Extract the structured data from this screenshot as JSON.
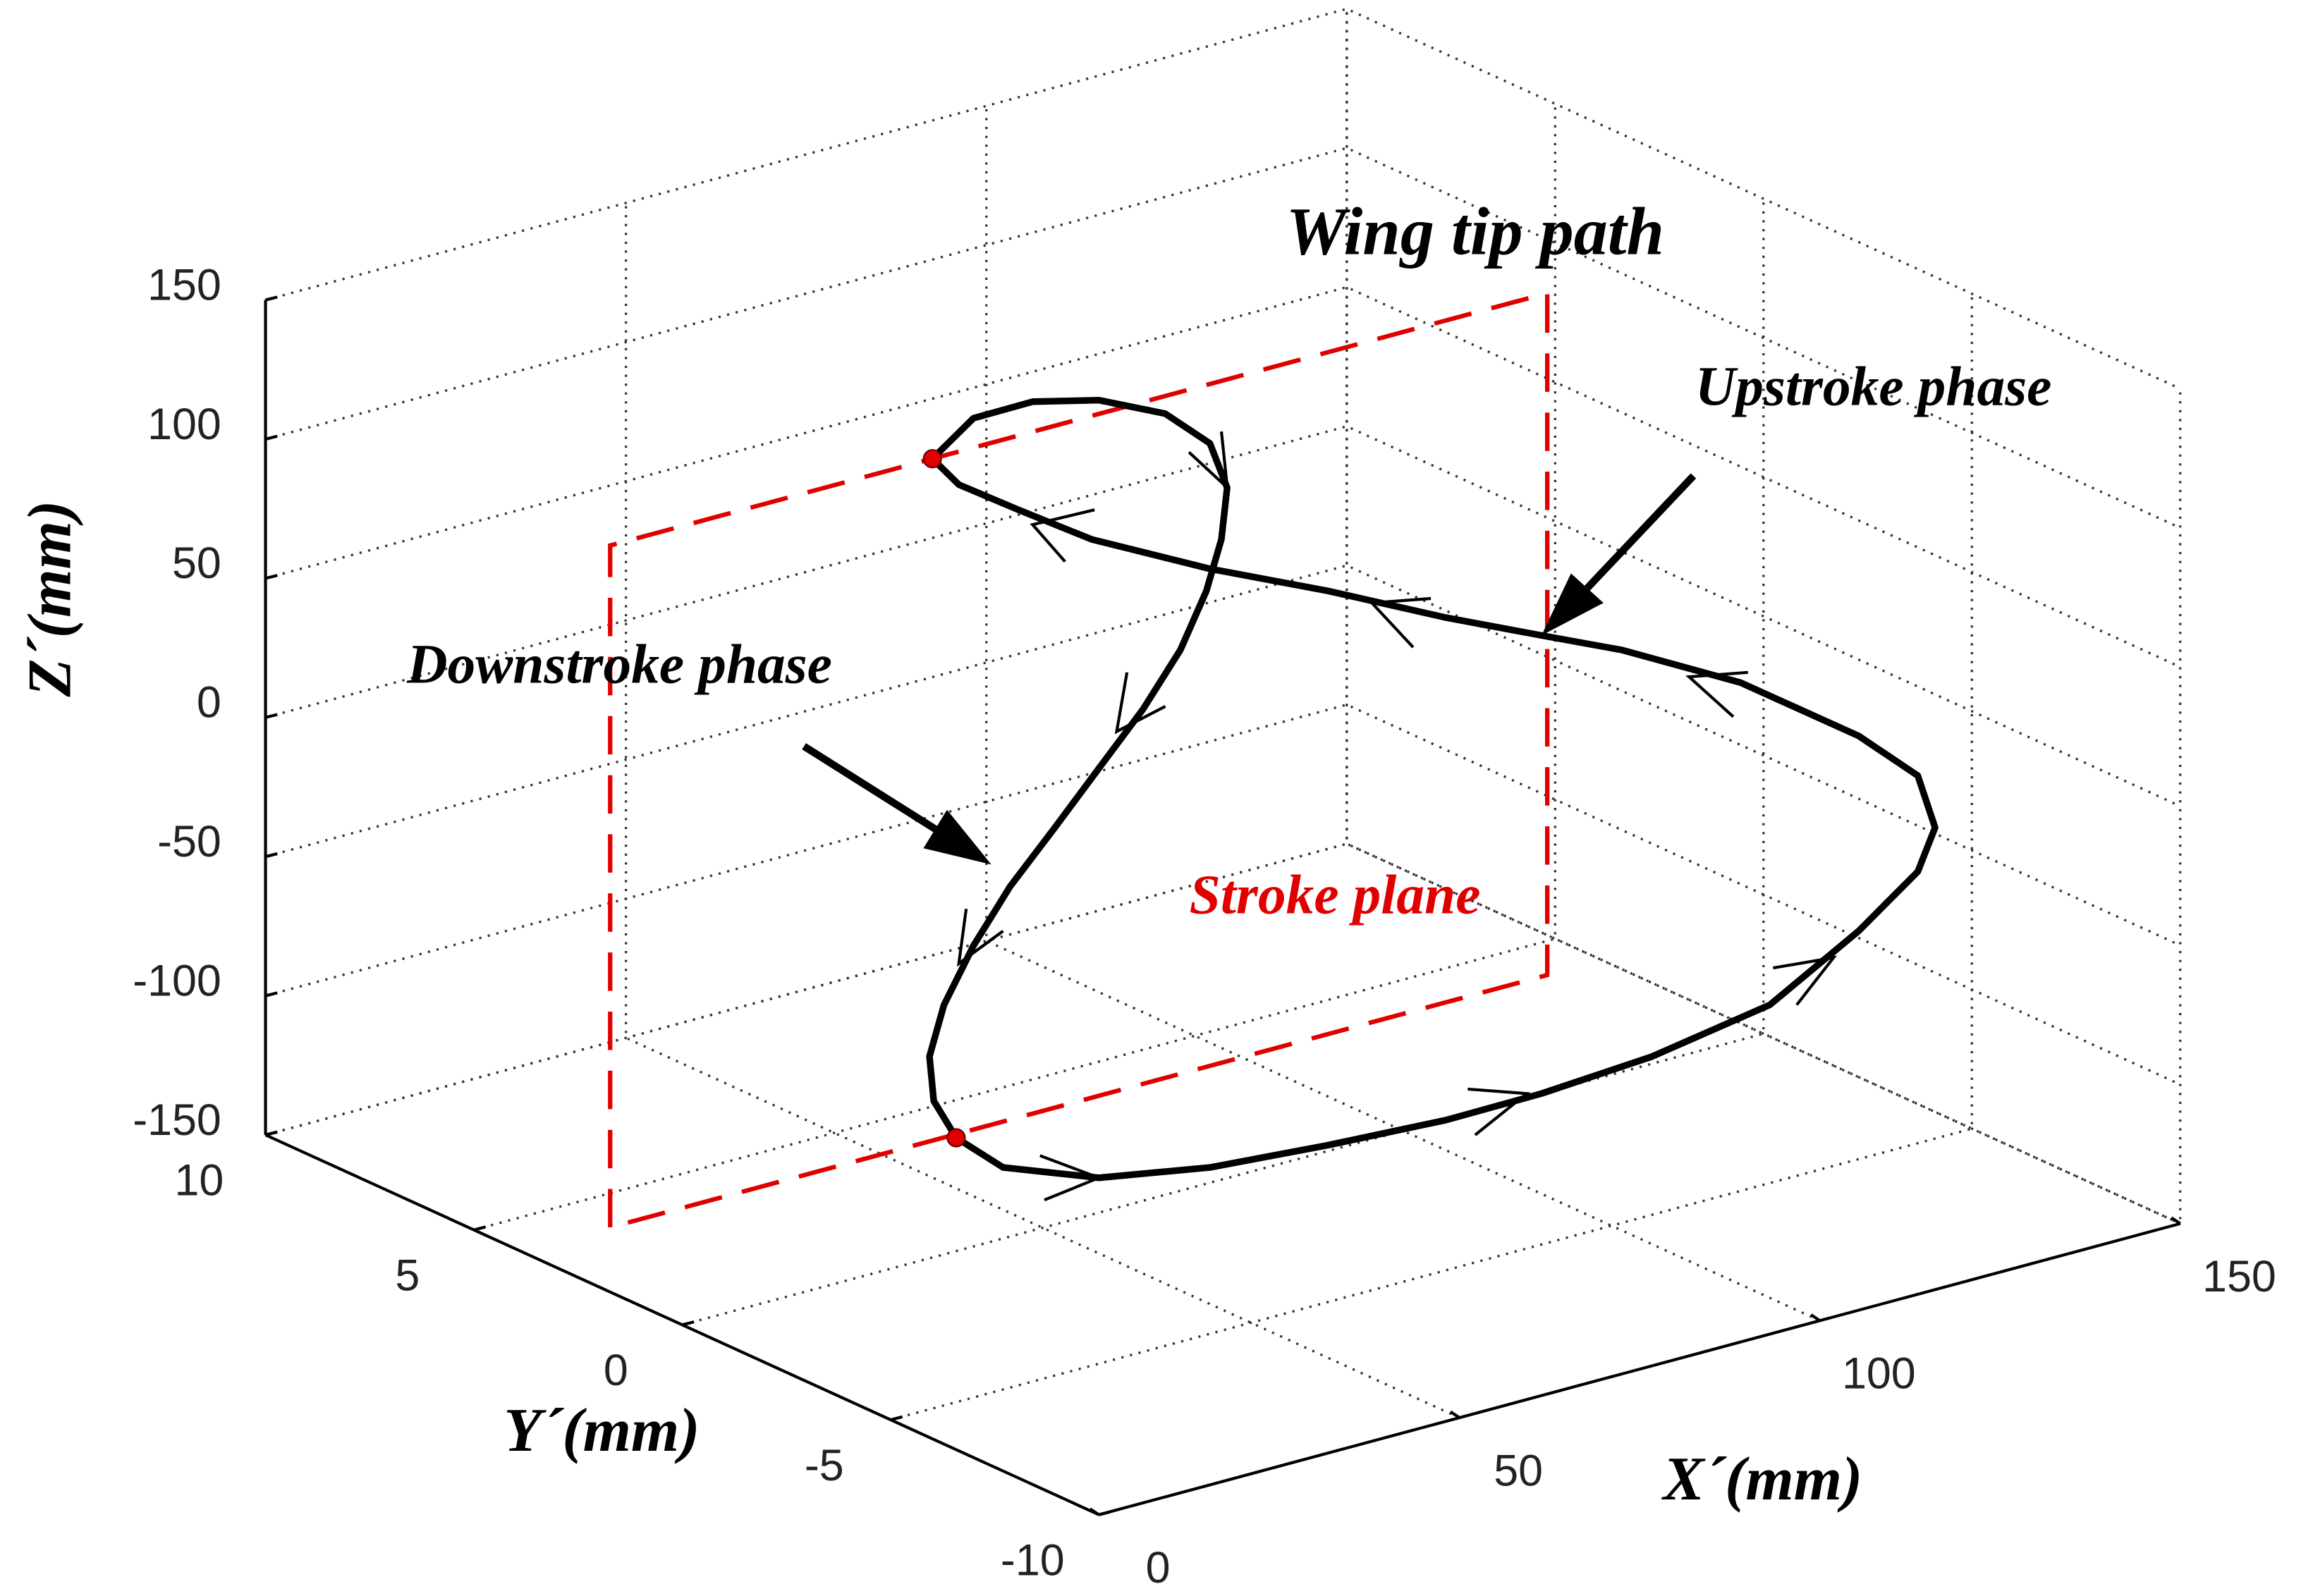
{
  "chart_data": {
    "type": "line3d",
    "title": "Wing tip path",
    "xlabel": "X´(mm)",
    "ylabel": "Y´(mm)",
    "zlabel": "Z´(mm)",
    "xlim": [
      0,
      150
    ],
    "ylim": [
      -10,
      10
    ],
    "zlim": [
      -150,
      150
    ],
    "xticks": [
      0,
      50,
      100,
      150
    ],
    "yticks": [
      -10,
      -5,
      0,
      5,
      10
    ],
    "zticks": [
      -150,
      -100,
      -50,
      0,
      50,
      100,
      150
    ],
    "grid": true,
    "series": [
      {
        "color": "#000000",
        "x": [
          34.7,
          40.4,
          48.6,
          57.8,
          67.0,
          73.2,
          75.6,
          74.8,
          72.7,
          69.1,
          63.9,
          57.8,
          51.7,
          45.5,
          40.4,
          36.3,
          34.3,
          34.9,
          38.0,
          44.5,
          57.8,
          73.2,
          89.5,
          105.9,
          119.2,
          134.5,
          150.9,
          163.2,
          171.4,
          173.8,
          171.4,
          163.2,
          146.8,
          130.4,
          119.2,
          105.9,
          89.5,
          73.2,
          56.8,
          46.6,
          38.4
        ],
        "y": [
          0,
          0,
          0,
          0,
          0,
          0,
          0,
          0,
          0,
          0,
          0,
          0,
          0,
          0,
          0,
          0,
          0,
          0,
          0,
          0,
          0,
          0,
          0,
          0,
          0,
          0,
          0,
          0,
          0,
          0,
          0,
          0,
          0,
          0,
          0,
          0,
          0,
          0,
          0,
          0,
          0
        ],
        "z": [
          137,
          147.6,
          147.8,
          141.9,
          130.7,
          115.7,
          98.1,
          80.1,
          63,
          44.3,
          26.6,
          9.6,
          -7.4,
          -24.2,
          -42,
          -60.4,
          -77.5,
          -93.9,
          -109.3,
          -124.5,
          -137.5,
          -144.5,
          -147.9,
          -150.3,
          -150,
          -147.4,
          -140.2,
          -122.3,
          -106.7,
          -92.5,
          -72.2,
          -52.2,
          -21.6,
          1.5,
          14.6,
          30.3,
          51.3,
          70.6,
          92.6,
          110.4,
          125.1
        ]
      }
    ],
    "markers": {
      "color": "#e00000",
      "x": [
        34.7,
        38.0
      ],
      "y": [
        0,
        0
      ],
      "z": [
        137,
        -109.3
      ]
    },
    "plane": {
      "color": "#e00000",
      "x": [
        -10,
        120
      ],
      "y": 0,
      "z": [
        -108,
        137
      ]
    },
    "annotations": [
      {
        "text": "Upstroke phase"
      },
      {
        "text": "Downstroke phase"
      },
      {
        "text": "Stroke plane",
        "color": "#e00000"
      }
    ]
  }
}
